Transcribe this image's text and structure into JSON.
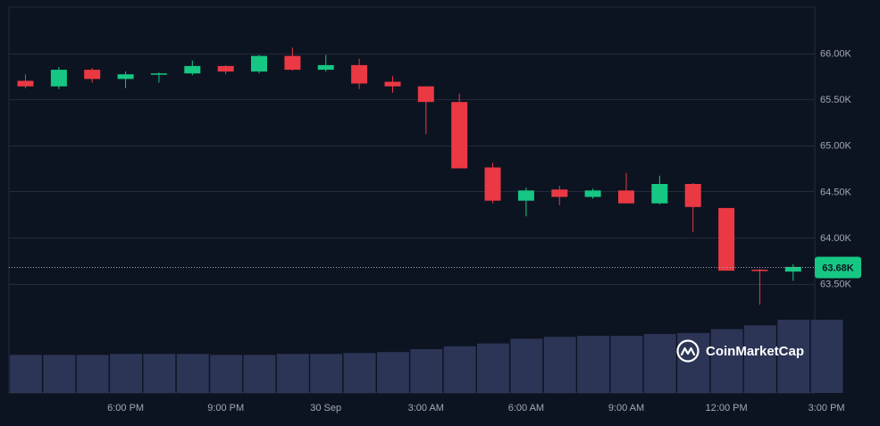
{
  "chart_data": {
    "type": "candlestick",
    "ylim": [
      63100,
      66500
    ],
    "y_ticks": [
      {
        "value": 66000,
        "label": "66.00K"
      },
      {
        "value": 65500,
        "label": "65.50K"
      },
      {
        "value": 65000,
        "label": "65.00K"
      },
      {
        "value": 64500,
        "label": "64.50K"
      },
      {
        "value": 64000,
        "label": "64.00K"
      },
      {
        "value": 63500,
        "label": "63.50K"
      }
    ],
    "x_ticks": [
      {
        "index": 3,
        "label": "6:00 PM"
      },
      {
        "index": 6,
        "label": "9:00 PM"
      },
      {
        "index": 9,
        "label": "30 Sep"
      },
      {
        "index": 12,
        "label": "3:00 AM"
      },
      {
        "index": 15,
        "label": "6:00 AM"
      },
      {
        "index": 18,
        "label": "9:00 AM"
      },
      {
        "index": 21,
        "label": "12:00 PM"
      },
      {
        "index": 24,
        "label": "3:00 PM"
      }
    ],
    "current_price": {
      "value": 63680,
      "label": "63.68K"
    },
    "candles": [
      {
        "o": 65700,
        "h": 65770,
        "l": 65620,
        "c": 65640
      },
      {
        "o": 65640,
        "h": 65850,
        "l": 65610,
        "c": 65820
      },
      {
        "o": 65820,
        "h": 65840,
        "l": 65680,
        "c": 65720
      },
      {
        "o": 65720,
        "h": 65800,
        "l": 65620,
        "c": 65770
      },
      {
        "o": 65770,
        "h": 65790,
        "l": 65680,
        "c": 65780
      },
      {
        "o": 65780,
        "h": 65920,
        "l": 65760,
        "c": 65860
      },
      {
        "o": 65860,
        "h": 65870,
        "l": 65770,
        "c": 65800
      },
      {
        "o": 65800,
        "h": 65980,
        "l": 65780,
        "c": 65970
      },
      {
        "o": 65970,
        "h": 66060,
        "l": 65810,
        "c": 65820
      },
      {
        "o": 65820,
        "h": 65980,
        "l": 65800,
        "c": 65870
      },
      {
        "o": 65870,
        "h": 65940,
        "l": 65610,
        "c": 65670
      },
      {
        "o": 65690,
        "h": 65750,
        "l": 65570,
        "c": 65640
      },
      {
        "o": 65640,
        "h": 65640,
        "l": 65120,
        "c": 65470
      },
      {
        "o": 65470,
        "h": 65560,
        "l": 64750,
        "c": 64750
      },
      {
        "o": 64760,
        "h": 64810,
        "l": 64370,
        "c": 64400
      },
      {
        "o": 64400,
        "h": 64540,
        "l": 64230,
        "c": 64510
      },
      {
        "o": 64520,
        "h": 64560,
        "l": 64350,
        "c": 64440
      },
      {
        "o": 64440,
        "h": 64530,
        "l": 64420,
        "c": 64510
      },
      {
        "o": 64510,
        "h": 64700,
        "l": 64370,
        "c": 64370
      },
      {
        "o": 64370,
        "h": 64670,
        "l": 64360,
        "c": 64580
      },
      {
        "o": 64580,
        "h": 64590,
        "l": 64060,
        "c": 64330
      },
      {
        "o": 64320,
        "h": 64320,
        "l": 63640,
        "c": 63640
      },
      {
        "o": 63650,
        "h": 63660,
        "l": 63270,
        "c": 63640
      },
      {
        "o": 63630,
        "h": 63710,
        "l": 63530,
        "c": 63680
      }
    ],
    "volume": [
      40,
      40,
      40,
      41,
      41,
      41,
      40,
      40,
      41,
      41,
      42,
      43,
      46,
      49,
      52,
      57,
      59,
      60,
      60,
      62,
      63,
      67,
      71,
      77,
      77
    ]
  },
  "watermark": {
    "text": "CoinMarketCap"
  },
  "colors": {
    "background": "#0d1421",
    "grid": "#222a3c",
    "up": "#16c784",
    "down": "#ea3943",
    "volume": "#2c3556",
    "price_line": "#a1a7bb"
  }
}
